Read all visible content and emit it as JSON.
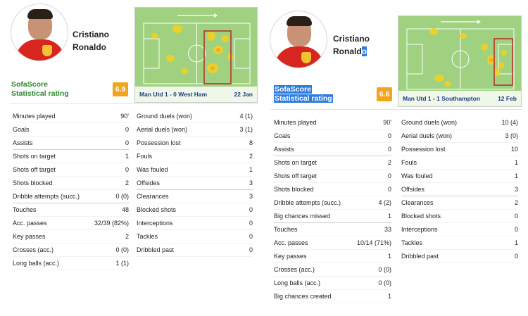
{
  "left": {
    "player": {
      "first": "Cristiano",
      "last": "Ronaldo"
    },
    "match": {
      "result": "Man Utd 1 - 0 West Ham",
      "date": "22 Jan"
    },
    "rating": {
      "line1": "SofaScore",
      "line2": "Statistical rating",
      "value": "6.9",
      "color": "#f2a51a"
    },
    "col1": [
      {
        "label": "Minutes played",
        "value": "90'"
      },
      {
        "label": "Goals",
        "value": "0"
      },
      {
        "label": "Assists",
        "value": "0",
        "sep": true
      },
      {
        "label": "Shots on target",
        "value": "1"
      },
      {
        "label": "Shots off target",
        "value": "0"
      },
      {
        "label": "Shots blocked",
        "value": "2"
      },
      {
        "label": "Dribble attempts (succ.)",
        "value": "0 (0)",
        "sep": true
      },
      {
        "label": "Touches",
        "value": "48"
      },
      {
        "label": "Acc. passes",
        "value": "32/39 (82%)"
      },
      {
        "label": "Key passes",
        "value": "2"
      },
      {
        "label": "Crosses (acc.)",
        "value": "0 (0)"
      },
      {
        "label": "Long balls (acc.)",
        "value": "1 (1)"
      }
    ],
    "col2": [
      {
        "label": "Ground duels (won)",
        "value": "4 (1)"
      },
      {
        "label": "Aerial duels (won)",
        "value": "3 (1)"
      },
      {
        "label": "Possession lost",
        "value": "8"
      },
      {
        "label": "Fouls",
        "value": "2"
      },
      {
        "label": "Was fouled",
        "value": "1"
      },
      {
        "label": "Offsides",
        "value": "3",
        "sep": true
      },
      {
        "label": "Clearances",
        "value": "3"
      },
      {
        "label": "Blocked shots",
        "value": "0"
      },
      {
        "label": "Interceptions",
        "value": "0"
      },
      {
        "label": "Tackles",
        "value": "0"
      },
      {
        "label": "Dribbled past",
        "value": "0"
      }
    ]
  },
  "right": {
    "player": {
      "first": "Cristiano",
      "last": "Ronald",
      "last_selected": "o"
    },
    "match": {
      "result": "Man Utd 1 - 1 Southampton",
      "date": "12 Feb"
    },
    "rating": {
      "line1": "SofaScore",
      "line2": "Statistical rating",
      "value": "6.6",
      "color": "#f2a51a"
    },
    "col1": [
      {
        "label": "Minutes played",
        "value": "90'"
      },
      {
        "label": "Goals",
        "value": "0"
      },
      {
        "label": "Assists",
        "value": "0",
        "sep": true
      },
      {
        "label": "Shots on target",
        "value": "2"
      },
      {
        "label": "Shots off target",
        "value": "0"
      },
      {
        "label": "Shots blocked",
        "value": "0"
      },
      {
        "label": "Dribble attempts (succ.)",
        "value": "4 (2)"
      },
      {
        "label": "Big chances missed",
        "value": "1",
        "sep": true
      },
      {
        "label": "Touches",
        "value": "33"
      },
      {
        "label": "Acc. passes",
        "value": "10/14 (71%)"
      },
      {
        "label": "Key passes",
        "value": "1"
      },
      {
        "label": "Crosses (acc.)",
        "value": "0 (0)"
      },
      {
        "label": "Long balls (acc.)",
        "value": "0 (0)"
      },
      {
        "label": "Big chances created",
        "value": "1"
      }
    ],
    "col2": [
      {
        "label": "Ground duels (won)",
        "value": "10 (4)"
      },
      {
        "label": "Aerial duels (won)",
        "value": "3 (0)"
      },
      {
        "label": "Possession lost",
        "value": "10"
      },
      {
        "label": "Fouls",
        "value": "1"
      },
      {
        "label": "Was fouled",
        "value": "1"
      },
      {
        "label": "Offsides",
        "value": "3",
        "sep": true
      },
      {
        "label": "Clearances",
        "value": "2"
      },
      {
        "label": "Blocked shots",
        "value": "0"
      },
      {
        "label": "Interceptions",
        "value": "0"
      },
      {
        "label": "Tackles",
        "value": "1"
      },
      {
        "label": "Dribbled past",
        "value": "0"
      }
    ]
  },
  "colors": {
    "pitch": "#9fd181",
    "heat": "#f6d21e",
    "zone": "#b5322d",
    "caption_text": "#1d3f86",
    "rating_green": "#2a8b2a",
    "selection": "#2c7be0"
  }
}
